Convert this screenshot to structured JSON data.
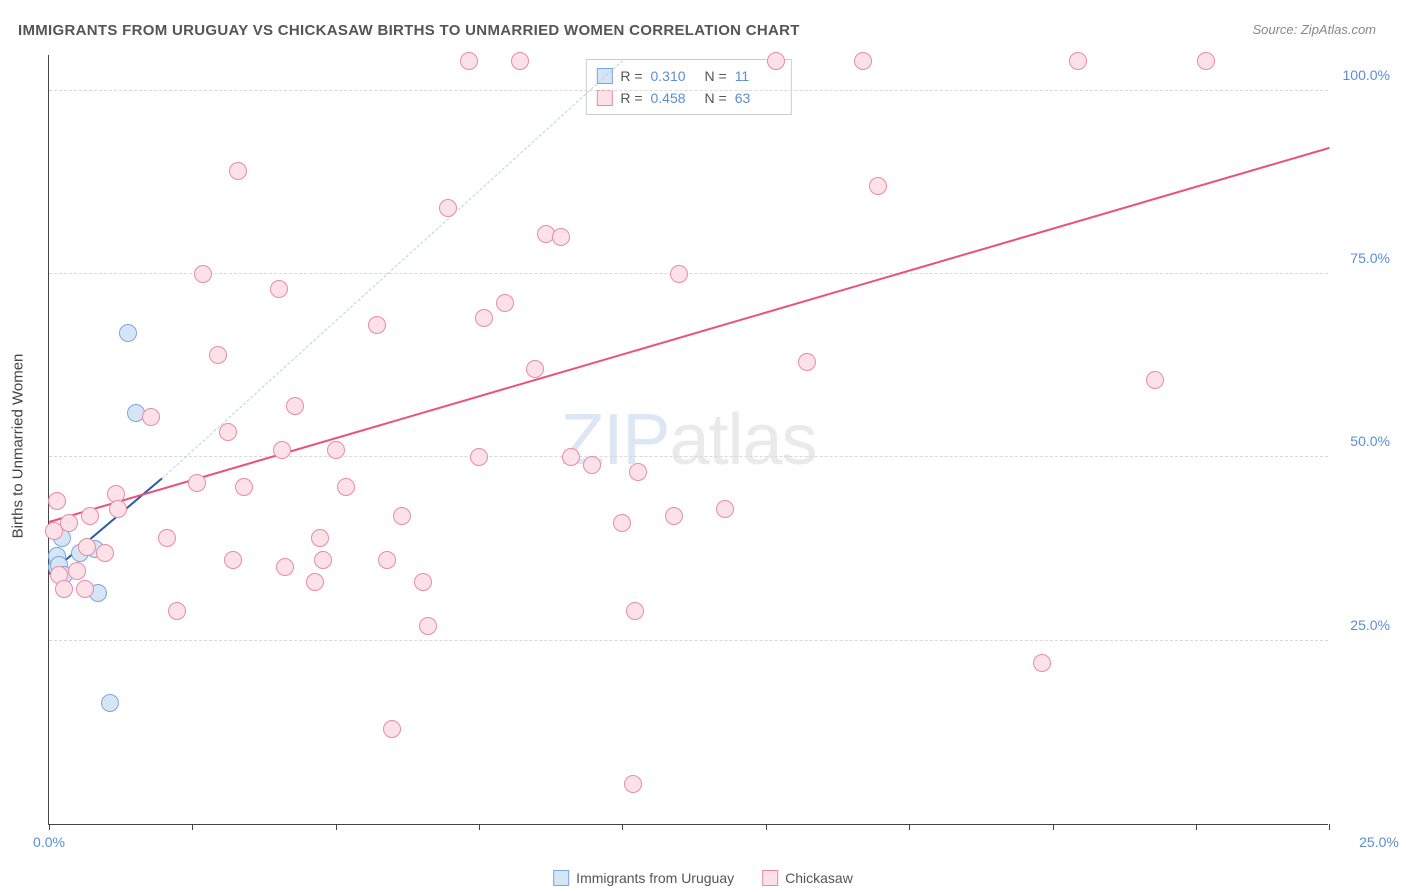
{
  "title": "IMMIGRANTS FROM URUGUAY VS CHICKASAW BIRTHS TO UNMARRIED WOMEN CORRELATION CHART",
  "source": "Source: ZipAtlas.com",
  "ylabel": "Births to Unmarried Women",
  "watermark_zip": "ZIP",
  "watermark_atlas": "atlas",
  "chart": {
    "type": "scatter",
    "background_color": "#ffffff",
    "grid_color": "#d8d8d8",
    "axis_color": "#444444",
    "label_color": "#5b8dd6",
    "xlim": [
      0,
      25
    ],
    "ylim": [
      0,
      105
    ],
    "xticks": [
      0,
      2.8,
      5.6,
      8.4,
      11.2,
      14,
      16.8,
      19.6,
      22.4,
      25
    ],
    "xtick_labels_shown": [
      {
        "x": 0,
        "label": "0.0%"
      },
      {
        "x": 25,
        "label": "25.0%"
      }
    ],
    "yticks": [
      {
        "y": 25,
        "label": "25.0%"
      },
      {
        "y": 50,
        "label": "50.0%"
      },
      {
        "y": 75,
        "label": "75.0%"
      },
      {
        "y": 100,
        "label": "100.0%"
      }
    ],
    "marker_radius": 9,
    "marker_border_width": 1.5,
    "series": [
      {
        "name": "Immigrants from Uruguay",
        "fill_color": "#d6e5f5",
        "border_color": "#7aa8d8",
        "r_value": "0.310",
        "n_value": "11",
        "trend": {
          "x1": 0,
          "y1": 34,
          "x2": 2.2,
          "y2": 47,
          "color": "#2a5caa",
          "width": 2,
          "dashed": false
        },
        "trend_ext": {
          "x1": 2.2,
          "y1": 47,
          "x2": 11.2,
          "y2": 104,
          "color": "#b8d0e8",
          "width": 1,
          "dashed": true
        },
        "points": [
          {
            "x": 0.15,
            "y": 35
          },
          {
            "x": 0.15,
            "y": 36.5
          },
          {
            "x": 0.2,
            "y": 35.3
          },
          {
            "x": 0.25,
            "y": 39
          },
          {
            "x": 0.3,
            "y": 34
          },
          {
            "x": 0.6,
            "y": 37
          },
          {
            "x": 0.9,
            "y": 37.5
          },
          {
            "x": 0.95,
            "y": 31.5
          },
          {
            "x": 1.2,
            "y": 16.5
          },
          {
            "x": 1.55,
            "y": 67
          },
          {
            "x": 1.7,
            "y": 56
          }
        ]
      },
      {
        "name": "Chickasaw",
        "fill_color": "#fce1e8",
        "border_color": "#e88ca5",
        "r_value": "0.458",
        "n_value": "63",
        "trend": {
          "x1": 0,
          "y1": 41,
          "x2": 25,
          "y2": 92,
          "color": "#e8537a",
          "width": 2.5,
          "dashed": false
        },
        "points": [
          {
            "x": 0.1,
            "y": 40
          },
          {
            "x": 0.15,
            "y": 44
          },
          {
            "x": 0.2,
            "y": 34
          },
          {
            "x": 0.3,
            "y": 32
          },
          {
            "x": 0.4,
            "y": 41
          },
          {
            "x": 0.55,
            "y": 34.5
          },
          {
            "x": 0.7,
            "y": 32
          },
          {
            "x": 0.75,
            "y": 37.8
          },
          {
            "x": 0.8,
            "y": 42
          },
          {
            "x": 1.1,
            "y": 37
          },
          {
            "x": 1.3,
            "y": 45
          },
          {
            "x": 1.35,
            "y": 43
          },
          {
            "x": 2.0,
            "y": 55.5
          },
          {
            "x": 2.3,
            "y": 39
          },
          {
            "x": 2.5,
            "y": 29
          },
          {
            "x": 2.9,
            "y": 46.5
          },
          {
            "x": 3.0,
            "y": 75
          },
          {
            "x": 3.3,
            "y": 64
          },
          {
            "x": 3.5,
            "y": 53.5
          },
          {
            "x": 3.6,
            "y": 36
          },
          {
            "x": 3.7,
            "y": 89
          },
          {
            "x": 3.8,
            "y": 46
          },
          {
            "x": 4.5,
            "y": 73
          },
          {
            "x": 4.55,
            "y": 51
          },
          {
            "x": 4.6,
            "y": 35
          },
          {
            "x": 4.8,
            "y": 57
          },
          {
            "x": 5.2,
            "y": 33
          },
          {
            "x": 5.3,
            "y": 39
          },
          {
            "x": 5.35,
            "y": 36
          },
          {
            "x": 5.6,
            "y": 51
          },
          {
            "x": 5.8,
            "y": 46
          },
          {
            "x": 6.4,
            "y": 68
          },
          {
            "x": 6.6,
            "y": 36
          },
          {
            "x": 6.7,
            "y": 13
          },
          {
            "x": 6.9,
            "y": 42
          },
          {
            "x": 7.3,
            "y": 33
          },
          {
            "x": 7.4,
            "y": 27
          },
          {
            "x": 7.8,
            "y": 84
          },
          {
            "x": 8.2,
            "y": 104
          },
          {
            "x": 8.4,
            "y": 50
          },
          {
            "x": 8.5,
            "y": 69
          },
          {
            "x": 8.9,
            "y": 71
          },
          {
            "x": 9.2,
            "y": 104
          },
          {
            "x": 9.5,
            "y": 62
          },
          {
            "x": 9.7,
            "y": 80.5
          },
          {
            "x": 10.0,
            "y": 80
          },
          {
            "x": 10.2,
            "y": 50
          },
          {
            "x": 10.6,
            "y": 49
          },
          {
            "x": 11.2,
            "y": 41
          },
          {
            "x": 11.4,
            "y": 5.5
          },
          {
            "x": 11.45,
            "y": 29
          },
          {
            "x": 11.5,
            "y": 48
          },
          {
            "x": 12.2,
            "y": 42
          },
          {
            "x": 12.3,
            "y": 75
          },
          {
            "x": 13.2,
            "y": 43
          },
          {
            "x": 14.2,
            "y": 104
          },
          {
            "x": 14.8,
            "y": 63
          },
          {
            "x": 15.9,
            "y": 104
          },
          {
            "x": 16.2,
            "y": 87
          },
          {
            "x": 19.4,
            "y": 22
          },
          {
            "x": 20.1,
            "y": 104
          },
          {
            "x": 21.6,
            "y": 60.5
          },
          {
            "x": 22.6,
            "y": 104
          }
        ]
      }
    ],
    "legend_top": {
      "r_label": "R =",
      "n_label": "N ="
    },
    "legend_bottom": [
      {
        "label": "Immigrants from Uruguay",
        "fill": "#d6e5f5",
        "border": "#7aa8d8"
      },
      {
        "label": "Chickasaw",
        "fill": "#fce1e8",
        "border": "#e88ca5"
      }
    ]
  }
}
